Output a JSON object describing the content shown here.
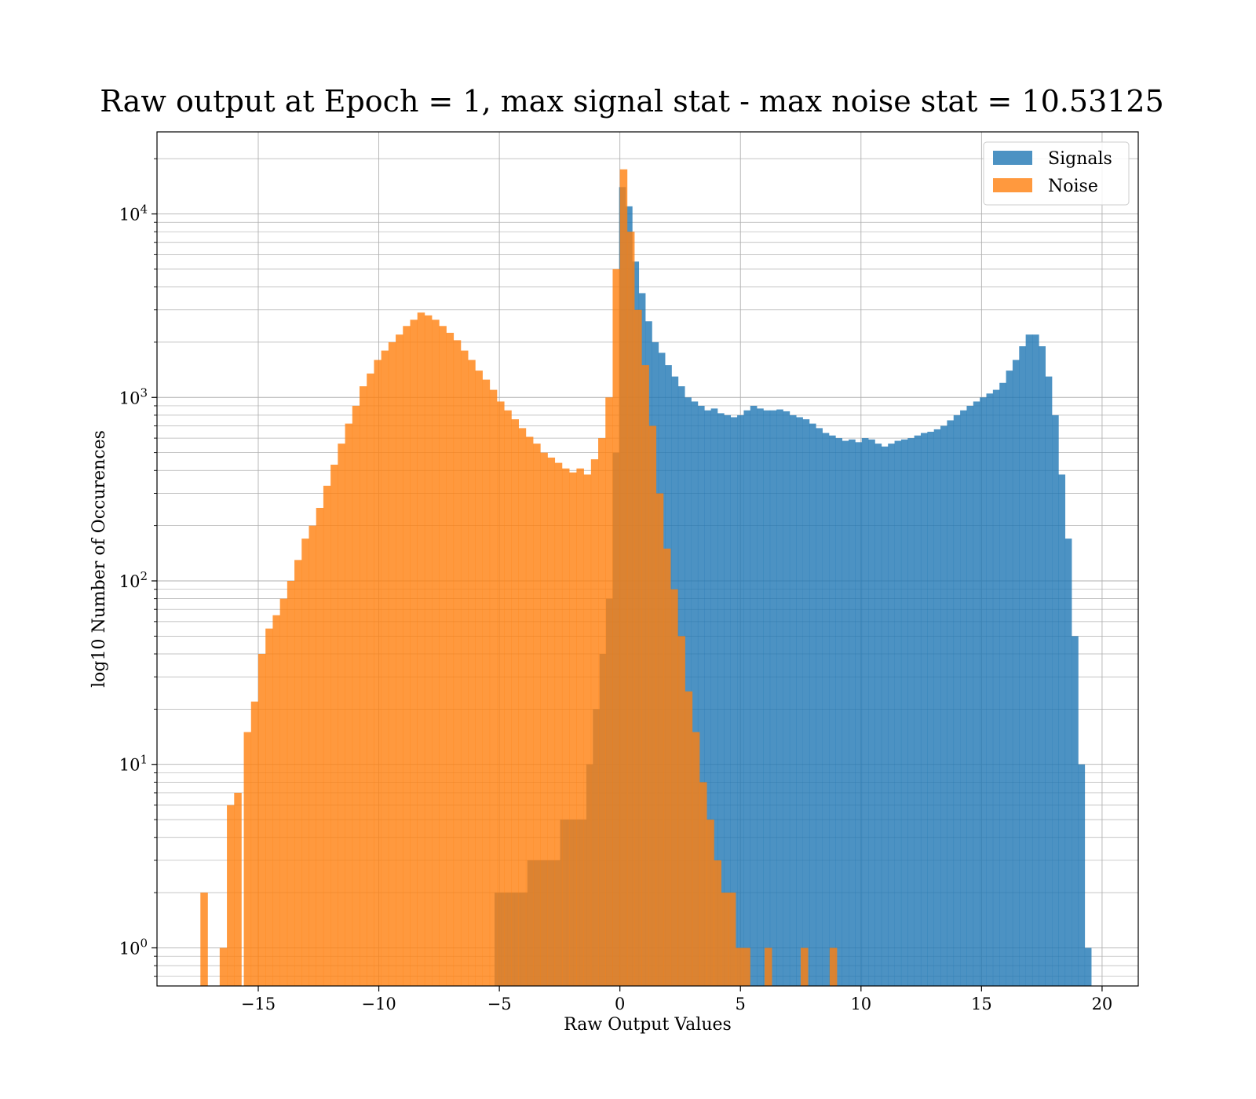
{
  "chart_data": {
    "type": "bar",
    "title": "Raw output at Epoch = 1, max signal stat - max noise stat = 10.53125",
    "xlabel": "Raw Output Values",
    "ylabel": "log10 Number of Occurences",
    "xlim": [
      -19.2,
      21.5
    ],
    "ylim": [
      0.62,
      28000
    ],
    "yscale": "log",
    "grid": true,
    "legend_position": "top-right",
    "x_ticks": [
      -15,
      -10,
      -5,
      0,
      5,
      10,
      15,
      20
    ],
    "x_tick_labels": [
      "−15",
      "−10",
      "−5",
      "0",
      "5",
      "10",
      "15",
      "20"
    ],
    "y_ticks": [
      {
        "value": 1,
        "base": "10",
        "exp": "0"
      },
      {
        "value": 10,
        "base": "10",
        "exp": "1"
      },
      {
        "value": 100,
        "base": "10",
        "exp": "2"
      },
      {
        "value": 1000,
        "base": "10",
        "exp": "3"
      },
      {
        "value": 10000,
        "base": "10",
        "exp": "4"
      }
    ],
    "series": [
      {
        "name": "Signals",
        "color": "#1f77b4",
        "opacity": 0.8,
        "bin_start": -5.2,
        "bin_width": 0.272,
        "counts": [
          2,
          2,
          2,
          2,
          2,
          3,
          3,
          3,
          3,
          3,
          5,
          5,
          5,
          5,
          10,
          20,
          40,
          80,
          500,
          14000,
          11000,
          5500,
          3700,
          2600,
          2000,
          1750,
          1500,
          1300,
          1150,
          1000,
          950,
          900,
          850,
          870,
          820,
          800,
          780,
          800,
          850,
          900,
          870,
          850,
          850,
          860,
          840,
          800,
          780,
          760,
          720,
          680,
          640,
          620,
          600,
          580,
          590,
          570,
          600,
          590,
          560,
          540,
          560,
          580,
          590,
          600,
          620,
          640,
          650,
          670,
          700,
          750,
          800,
          850,
          900,
          950,
          1000,
          1050,
          1100,
          1200,
          1400,
          1600,
          1900,
          2200,
          2200,
          1900,
          1300,
          800,
          380,
          170,
          50,
          10,
          1
        ]
      },
      {
        "name": "Noise",
        "color": "#ff7f0e",
        "opacity": 0.8,
        "bins": [
          [
            -17.4,
            2
          ],
          [
            -16.6,
            1
          ],
          [
            -16.3,
            6
          ],
          [
            -16.0,
            7
          ],
          [
            -15.6,
            15
          ],
          [
            -15.3,
            22
          ],
          [
            -15.0,
            40
          ],
          [
            -14.7,
            55
          ],
          [
            -14.4,
            65
          ],
          [
            -14.1,
            80
          ],
          [
            -13.8,
            100
          ],
          [
            -13.5,
            130
          ],
          [
            -13.2,
            170
          ],
          [
            -12.9,
            200
          ],
          [
            -12.6,
            250
          ],
          [
            -12.3,
            330
          ],
          [
            -12.0,
            430
          ],
          [
            -11.7,
            560
          ],
          [
            -11.4,
            720
          ],
          [
            -11.1,
            900
          ],
          [
            -10.8,
            1150
          ],
          [
            -10.5,
            1350
          ],
          [
            -10.2,
            1600
          ],
          [
            -9.9,
            1800
          ],
          [
            -9.6,
            2000
          ],
          [
            -9.3,
            2200
          ],
          [
            -9.0,
            2450
          ],
          [
            -8.7,
            2650
          ],
          [
            -8.4,
            2900
          ],
          [
            -8.1,
            2800
          ],
          [
            -7.8,
            2650
          ],
          [
            -7.5,
            2450
          ],
          [
            -7.2,
            2250
          ],
          [
            -6.9,
            2050
          ],
          [
            -6.6,
            1800
          ],
          [
            -6.3,
            1600
          ],
          [
            -6.0,
            1400
          ],
          [
            -5.7,
            1250
          ],
          [
            -5.4,
            1100
          ],
          [
            -5.1,
            950
          ],
          [
            -4.8,
            850
          ],
          [
            -4.5,
            760
          ],
          [
            -4.2,
            680
          ],
          [
            -3.9,
            610
          ],
          [
            -3.6,
            560
          ],
          [
            -3.3,
            500
          ],
          [
            -3.0,
            470
          ],
          [
            -2.7,
            440
          ],
          [
            -2.4,
            410
          ],
          [
            -2.1,
            390
          ],
          [
            -1.8,
            410
          ],
          [
            -1.5,
            380
          ],
          [
            -1.2,
            460
          ],
          [
            -0.9,
            600
          ],
          [
            -0.6,
            1000
          ],
          [
            -0.3,
            5000
          ],
          [
            0.0,
            17500
          ],
          [
            0.3,
            8000
          ],
          [
            0.6,
            3000
          ],
          [
            0.9,
            1500
          ],
          [
            1.2,
            700
          ],
          [
            1.5,
            300
          ],
          [
            1.8,
            150
          ],
          [
            2.1,
            90
          ],
          [
            2.4,
            50
          ],
          [
            2.7,
            25
          ],
          [
            3.0,
            15
          ],
          [
            3.3,
            8
          ],
          [
            3.6,
            5
          ],
          [
            3.9,
            3
          ],
          [
            4.2,
            2
          ],
          [
            4.5,
            2
          ],
          [
            4.8,
            1
          ],
          [
            5.1,
            1
          ],
          [
            6.0,
            1
          ],
          [
            7.5,
            1
          ],
          [
            8.7,
            1
          ]
        ]
      }
    ]
  }
}
